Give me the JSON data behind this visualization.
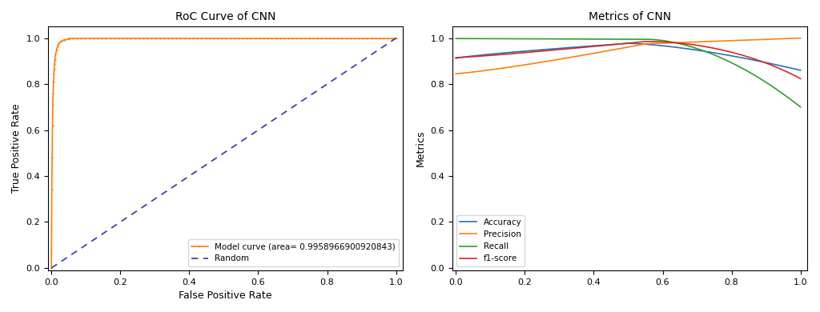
{
  "roc_title": "RoC Curve of CNN",
  "roc_xlabel": "False Positive Rate",
  "roc_ylabel": "True Positive Rate",
  "roc_legend_model": "Model curve (area= 0.9958966900920843)",
  "roc_legend_random": "Random",
  "roc_model_color": "#ff7f0e",
  "roc_random_color": "#3333aa",
  "metrics_title": "Metrics of CNN",
  "metrics_xlabel": "",
  "metrics_ylabel": "Metrics",
  "metrics_legend": [
    "Accuracy",
    "Precision",
    "Recall",
    "f1-score"
  ],
  "metrics_colors": [
    "#1f77b4",
    "#ff7f0e",
    "#2ca02c",
    "#d62728"
  ],
  "fig_width": 10.24,
  "fig_height": 3.9,
  "dpi": 100
}
